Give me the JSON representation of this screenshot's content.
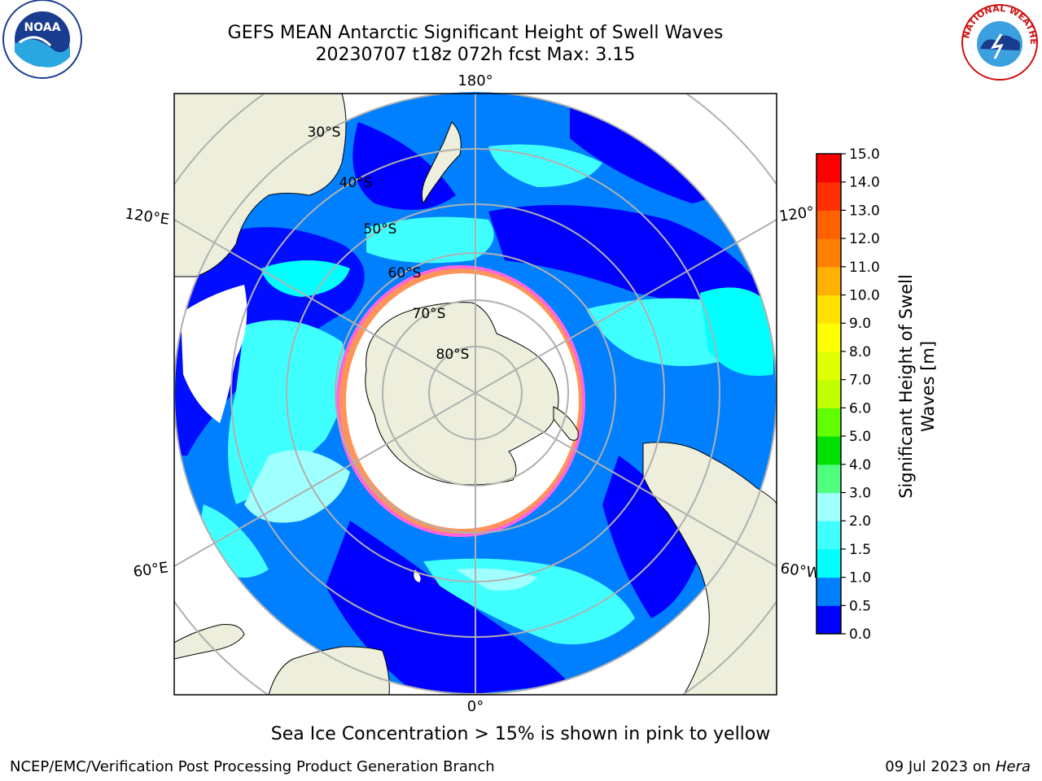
{
  "header": {
    "title_line1": "GEFS MEAN Antarctic Significant Height of Swell Waves",
    "title_line2": "20230707 t18z 072h fcst   Max: 3.15"
  },
  "logos": {
    "left": {
      "name": "noaa-logo",
      "text": "NOAA"
    },
    "right": {
      "name": "nws-logo",
      "text": "NATIONAL WEATHER SERVICE"
    }
  },
  "map": {
    "projection": "south-polar-stereographic",
    "longitude_labels": [
      "180°",
      "120°E",
      "120°",
      "60°E",
      "60°W",
      "0°"
    ],
    "latitude_labels": [
      "30°S",
      "40°S",
      "50°S",
      "60°S",
      "70°S",
      "80°S"
    ],
    "colors": {
      "land": "#eeeedc",
      "coast": "#000000",
      "grid": "#b0b0b0",
      "sea_ice_white": "#ffffff",
      "sea_ice_edge": "#ff33cc",
      "sea_ice_yellow": "#ffb300"
    }
  },
  "colorbar": {
    "label": "Significant Height of Swell Waves [m]",
    "label_line1": "Significant Height of Swell",
    "label_line2": "Waves [m]",
    "ticks": [
      "0.0",
      "0.5",
      "1.0",
      "1.5",
      "2.0",
      "3.0",
      "4.0",
      "5.0",
      "6.0",
      "7.0",
      "8.0",
      "9.0",
      "10.0",
      "11.0",
      "12.0",
      "13.0",
      "14.0",
      "15.0"
    ],
    "colors": [
      "#0000ff",
      "#0080ff",
      "#00ffff",
      "#40ffff",
      "#a0ffff",
      "#50ff80",
      "#00e000",
      "#60ff00",
      "#c0ff00",
      "#e0ff00",
      "#ffff00",
      "#ffe000",
      "#ffb000",
      "#ff8000",
      "#ff6000",
      "#ff3000",
      "#ff0000"
    ]
  },
  "notes": {
    "sea_ice": "Sea Ice Concentration > 15% is shown in pink to yellow"
  },
  "footer": {
    "left": "NCEP/EMC/Verification Post Processing Product Generation Branch",
    "date": "09 Jul 2023 on",
    "machine": "Hera"
  }
}
